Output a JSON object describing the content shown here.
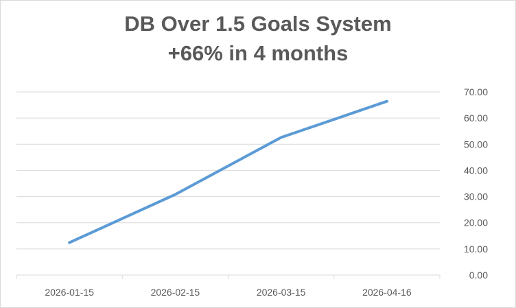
{
  "chart_data": {
    "type": "line",
    "title": "DB Over 1.5 Goals System",
    "subtitle": "+66% in 4 months",
    "categories": [
      "2026-01-15",
      "2026-02-15",
      "2026-03-15",
      "2026-04-16"
    ],
    "series": [
      {
        "values": [
          12.4,
          30.8,
          52.6,
          66.4
        ],
        "color": "#5b9bd5"
      }
    ],
    "ylim": [
      0,
      70
    ],
    "yticks": [
      "0.00",
      "10.00",
      "20.00",
      "30.00",
      "40.00",
      "50.00",
      "60.00",
      "70.00"
    ],
    "y_axis_position": "right",
    "grid": true,
    "xlabel": "",
    "ylabel": "",
    "legend": "none"
  }
}
